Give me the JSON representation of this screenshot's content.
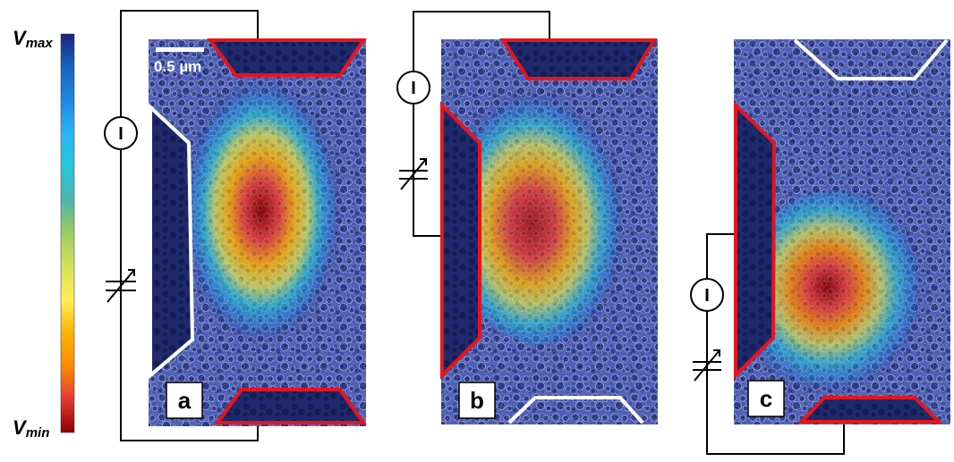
{
  "colorbar": {
    "label_max_main": "V",
    "label_max_sub": "max",
    "label_min_main": "V",
    "label_min_sub": "min",
    "colors": [
      "#1a237e",
      "#1565c0",
      "#1e88e5",
      "#29b6f6",
      "#26c6da",
      "#4db6ac",
      "#9ccc65",
      "#d4e157",
      "#ffee58",
      "#ffb300",
      "#fb8c00",
      "#e53935",
      "#8b0000"
    ]
  },
  "scale_bar": {
    "label": "0.5 µm"
  },
  "meter_symbol": "I",
  "panels": [
    {
      "letter": "a",
      "hot_color": "#c62828"
    },
    {
      "letter": "b",
      "hot_color": "#c62828"
    },
    {
      "letter": "c",
      "hot_color": "#c62828"
    }
  ],
  "electrode_colors": {
    "active": "#e8141b",
    "floating": "#ffffff"
  }
}
